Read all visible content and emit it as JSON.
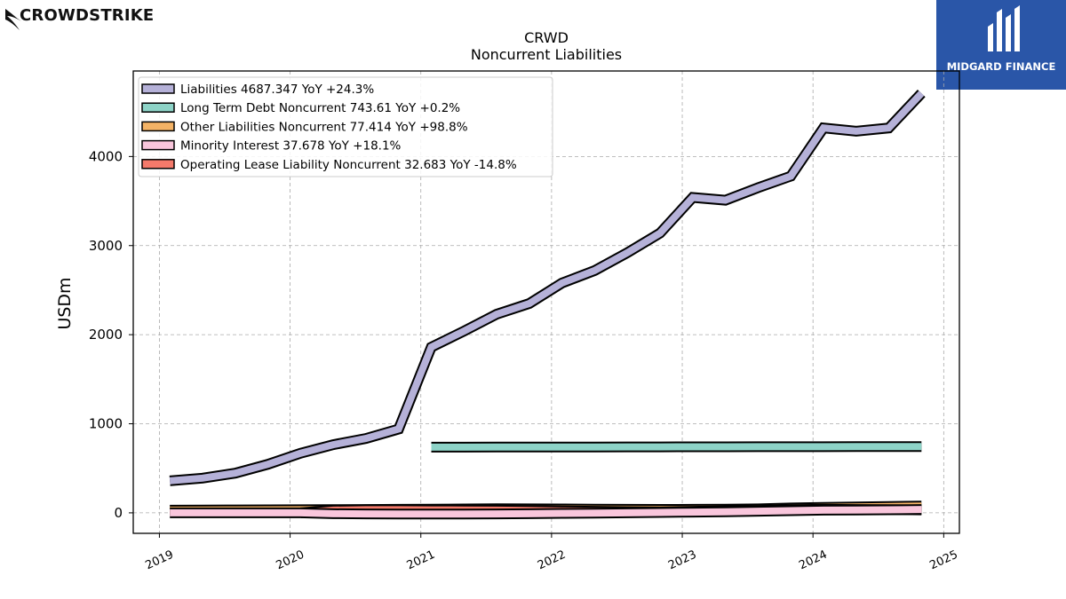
{
  "brand": {
    "left_logo_text": "CROWDSTRIKE",
    "right_logo_text": "MIDGARD FINANCE",
    "right_logo_color": "#2a56a8"
  },
  "chart_data": {
    "type": "line",
    "title": "CRWD",
    "subtitle": "Noncurrent  Liabilities",
    "xlabel": "",
    "ylabel": "USDm",
    "xlim": [
      2018.8,
      2025.12
    ],
    "ylim": [
      -230,
      4960
    ],
    "x_ticks": [
      "2019",
      "2020",
      "2021",
      "2022",
      "2023",
      "2024",
      "2025"
    ],
    "y_ticks": [
      "0",
      "1000",
      "2000",
      "3000",
      "4000"
    ],
    "grid": true,
    "legend_position": "top-left",
    "series": [
      {
        "name": "Liabilities",
        "legend": "Liabilities  4687.347 YoY +24.3%",
        "color": "#b5b1d8",
        "x": [
          2019.08,
          2019.33,
          2019.58,
          2019.83,
          2020.08,
          2020.33,
          2020.58,
          2020.83,
          2021.08,
          2021.33,
          2021.58,
          2021.83,
          2022.08,
          2022.33,
          2022.58,
          2022.83,
          2023.08,
          2023.33,
          2023.58,
          2023.83,
          2024.08,
          2024.33,
          2024.58,
          2024.83
        ],
        "y": [
          360,
          390,
          445,
          545,
          670,
          765,
          835,
          940,
          1860,
          2040,
          2230,
          2350,
          2580,
          2720,
          2920,
          3140,
          3540,
          3510,
          3650,
          3780,
          4320,
          4285,
          4320,
          4710
        ]
      },
      {
        "name": "Long Term Debt Noncurrent",
        "legend": "Long Term Debt Noncurrent  743.61 YoY +0.2%",
        "color": "#8dd3c7",
        "x": [
          2021.08,
          2021.33,
          2021.58,
          2021.83,
          2022.08,
          2022.33,
          2022.58,
          2022.83,
          2023.08,
          2023.33,
          2023.58,
          2023.83,
          2024.08,
          2024.33,
          2024.58,
          2024.83
        ],
        "y": [
          737,
          737,
          738,
          738,
          739,
          739,
          740,
          740,
          741,
          741,
          742,
          742,
          742,
          743,
          743,
          744
        ]
      },
      {
        "name": "Other Liabilities Noncurrent",
        "legend": "Other Liabilities Noncurrent  77.414 YoY +98.8%",
        "color": "#f4b366",
        "x": [
          2019.08,
          2019.33,
          2019.58,
          2019.83,
          2020.08,
          2020.33,
          2020.58,
          2020.83,
          2021.08,
          2021.33,
          2021.58,
          2021.83,
          2022.08,
          2022.33,
          2022.58,
          2022.83,
          2023.08,
          2023.33,
          2023.58,
          2023.83,
          2024.08,
          2024.33,
          2024.58,
          2024.83
        ],
        "y": [
          30,
          32,
          33,
          34,
          35,
          36,
          38,
          40,
          42,
          44,
          46,
          45,
          44,
          42,
          40,
          39,
          40,
          41,
          45,
          55,
          62,
          66,
          72,
          77
        ]
      },
      {
        "name": "Minority Interest",
        "legend": "Minority Interest  37.678 YoY +18.1%",
        "color": "#f9c6dc",
        "x": [
          2019.08,
          2019.33,
          2019.58,
          2019.83,
          2020.08,
          2020.33,
          2020.58,
          2020.83,
          2021.08,
          2021.33,
          2021.58,
          2021.83,
          2022.08,
          2022.33,
          2022.58,
          2022.83,
          2023.08,
          2023.33,
          2023.58,
          2023.83,
          2024.08,
          2024.33,
          2024.58,
          2024.83
        ],
        "y": [
          0,
          0,
          0,
          0,
          0,
          -10,
          -12,
          -14,
          -14,
          -13,
          -12,
          -10,
          -6,
          -3,
          0,
          4,
          8,
          12,
          18,
          24,
          30,
          32,
          34,
          38
        ]
      },
      {
        "name": "Operating Lease Liability Noncurrent",
        "legend": "Operating Lease Liability Noncurrent  32.683 YoY -14.8%",
        "color": "#f47a6b",
        "x": [
          2020.08,
          2020.33,
          2020.58,
          2020.83,
          2021.08,
          2021.33,
          2021.58,
          2021.83,
          2022.08,
          2022.33,
          2022.58,
          2022.83,
          2023.08,
          2023.33,
          2023.58,
          2023.83,
          2024.08,
          2024.33,
          2024.58,
          2024.83
        ],
        "y": [
          0,
          30,
          35,
          35,
          33,
          32,
          30,
          26,
          22,
          18,
          14,
          12,
          18,
          24,
          28,
          36,
          40,
          38,
          36,
          33
        ]
      }
    ]
  }
}
